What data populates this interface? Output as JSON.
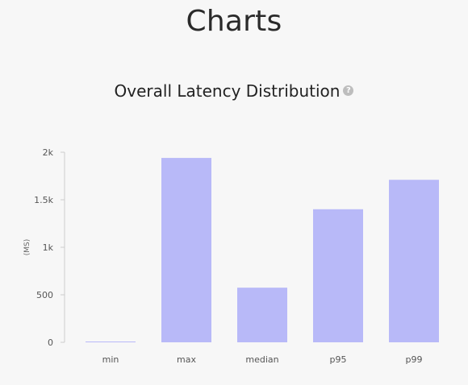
{
  "page": {
    "title": "Charts"
  },
  "chart_heading": {
    "title": "Overall Latency Distribution",
    "help_icon": "question-circle-icon"
  },
  "chart_data": {
    "type": "bar",
    "title": "Overall Latency Distribution",
    "categories": [
      "min",
      "max",
      "median",
      "p95",
      "p99"
    ],
    "values": [
      5,
      1940,
      575,
      1400,
      1710
    ],
    "xlabel": "",
    "ylabel": "(MS)",
    "ylim": [
      0,
      2000
    ],
    "yticks": [
      0,
      500,
      1000,
      1500,
      2000
    ],
    "ytick_labels": [
      "0",
      "500",
      "1k",
      "1.5k",
      "2k"
    ],
    "grid": false,
    "legend": "none",
    "colors": {
      "bar": "#b8b9f8",
      "axis": "#cccccc"
    }
  }
}
